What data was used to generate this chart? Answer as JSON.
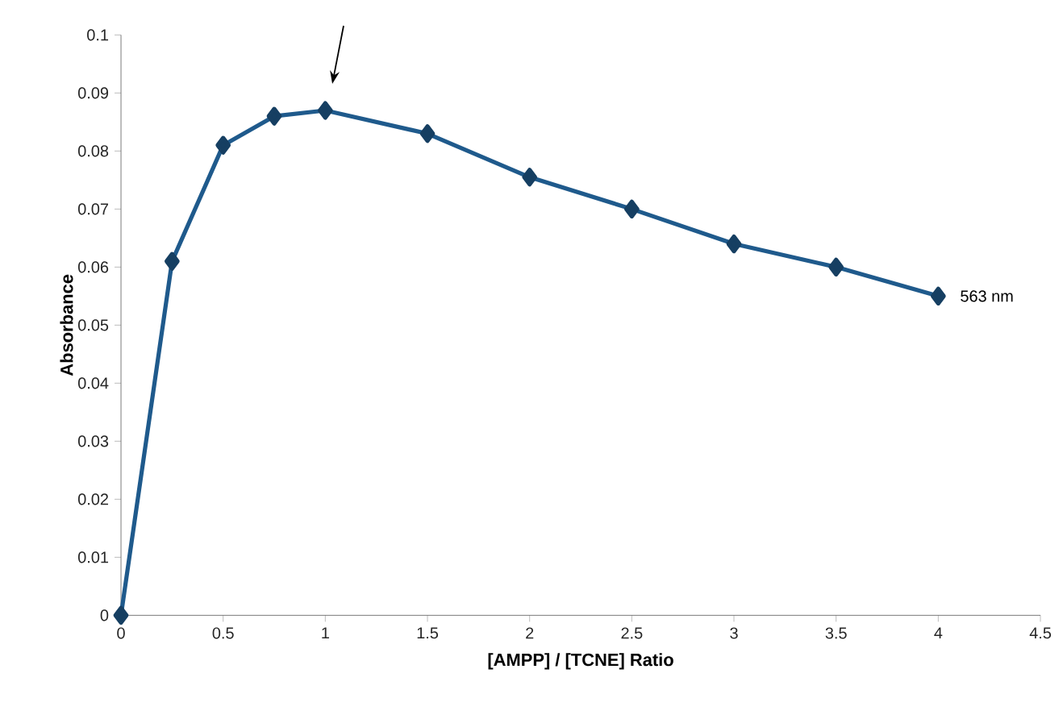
{
  "chart_data": {
    "type": "line",
    "xlabel": "[AMPP] / [TCNE] Ratio",
    "ylabel": "Absorbance",
    "x": [
      0,
      0.25,
      0.5,
      0.75,
      1,
      1.5,
      2,
      2.5,
      3,
      3.5,
      4
    ],
    "series": [
      {
        "color": "#1f5a8c",
        "values": [
          0,
          0.061,
          0.081,
          0.086,
          0.087,
          0.083,
          0.0755,
          0.07,
          0.064,
          0.06,
          0.055
        ]
      }
    ],
    "xlim": [
      0,
      4.5
    ],
    "xticks": [
      0,
      0.5,
      1,
      1.5,
      2,
      2.5,
      3,
      3.5,
      4,
      4.5
    ],
    "ylim": [
      0,
      0.1
    ],
    "yticks": [
      0,
      0.01,
      0.02,
      0.03,
      0.04,
      0.05,
      0.06,
      0.07,
      0.08,
      0.09,
      0.1
    ],
    "marker": "diamond",
    "line_style": "solid",
    "annotations": [
      {
        "text": "563 nm",
        "x": 4,
        "y": 0.055
      }
    ]
  }
}
